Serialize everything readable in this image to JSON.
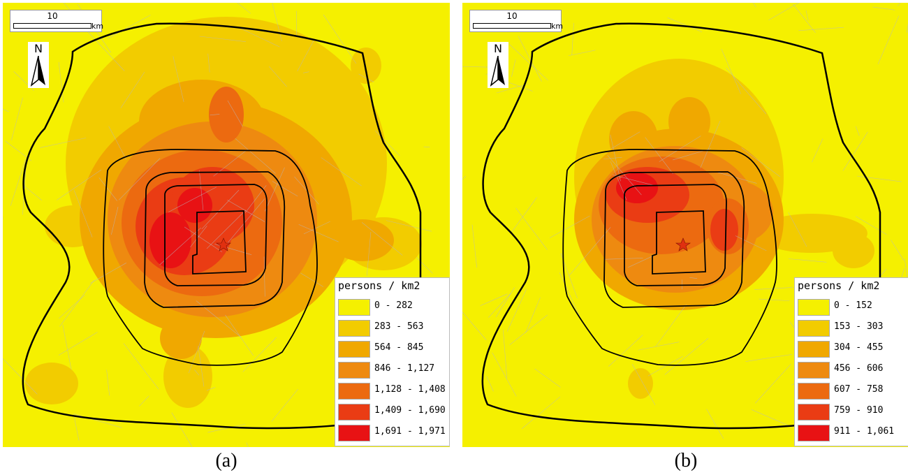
{
  "colors": {
    "background": "#f5f000",
    "classes": [
      "#f5f000",
      "#f2cc00",
      "#f0a800",
      "#ee8a10",
      "#ec6a10",
      "#ea3c14",
      "#e81214"
    ],
    "ring_road": "#000000",
    "street": "#b8b8c0",
    "center_marker": "#e03010"
  },
  "panels": [
    {
      "id": "a",
      "caption": "(a)",
      "scale": {
        "label": "10",
        "unit": "km"
      },
      "north_label": "N",
      "legend": {
        "title": "persons / km2",
        "classes": [
          "0 - 282",
          "283 - 563",
          "564 - 845",
          "846 - 1,127",
          "1,128 - 1,408",
          "1,409 - 1,690",
          "1,691 - 1,971"
        ]
      }
    },
    {
      "id": "b",
      "caption": "(b)",
      "scale": {
        "label": "10",
        "unit": "km"
      },
      "north_label": "N",
      "legend": {
        "title": "persons / km2",
        "classes": [
          "0 - 152",
          "153 - 303",
          "304 - 455",
          "456 - 606",
          "607 - 758",
          "759 - 910",
          "911 - 1,061"
        ]
      }
    }
  ]
}
